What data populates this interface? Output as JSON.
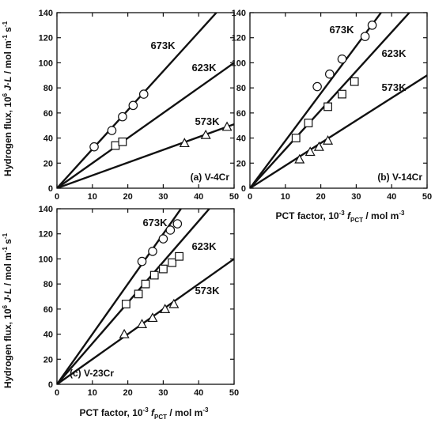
{
  "figure": {
    "ylabel_prefix": "Hydrogen flux, 10",
    "ylabel_exp": "6",
    "ylabel_mid": " J",
    "ylabel_dot": "·",
    "ylabel_L": "L",
    "ylabel_unit": " / mol m",
    "ylabel_unit_exp1": "-1",
    "ylabel_unit_s": " s",
    "ylabel_unit_exp2": "-1",
    "xlabel_prefix": "PCT factor, 10",
    "xlabel_exp": "-3",
    "xlabel_f": " f",
    "xlabel_sub": "PCT",
    "xlabel_unit": " / mol m",
    "xlabel_unit_exp": "-3"
  },
  "chart_data": [
    {
      "type": "scatter",
      "panel_label": "(a) V-4Cr",
      "xlim": [
        0,
        50
      ],
      "ylim": [
        0,
        140
      ],
      "xticks": [
        0,
        10,
        20,
        30,
        40,
        50
      ],
      "yticks": [
        0,
        20,
        40,
        60,
        80,
        100,
        120,
        140
      ],
      "xlabel": "",
      "ylabel": "Hydrogen flux, 10^6 J·L / mol m^-1 s^-1",
      "series": [
        {
          "name": "673K",
          "marker": "circle",
          "points": [
            [
              10.5,
              33
            ],
            [
              15.5,
              46
            ],
            [
              18.5,
              57
            ],
            [
              21.5,
              66
            ],
            [
              24.5,
              75
            ]
          ],
          "fit": [
            [
              0,
              0
            ],
            [
              45,
              140
            ]
          ]
        },
        {
          "name": "623K",
          "marker": "square",
          "points": [
            [
              16.5,
              34
            ],
            [
              18.5,
              37
            ]
          ],
          "fit": [
            [
              0,
              0
            ],
            [
              50,
              100
            ]
          ]
        },
        {
          "name": "573K",
          "marker": "triangle",
          "points": [
            [
              36,
              36
            ],
            [
              42,
              42.5
            ],
            [
              48,
              49
            ]
          ],
          "fit": [
            [
              0,
              0
            ],
            [
              50,
              51
            ]
          ]
        }
      ]
    },
    {
      "type": "scatter",
      "panel_label": "(b) V-14Cr",
      "xlim": [
        0,
        50
      ],
      "ylim": [
        0,
        140
      ],
      "xticks": [
        0,
        10,
        20,
        30,
        40,
        50
      ],
      "yticks": [
        0,
        20,
        40,
        60,
        80,
        100,
        120,
        140
      ],
      "xlabel": "PCT factor, 10^-3 f_PCT / mol m^-3",
      "ylabel": "",
      "series": [
        {
          "name": "673K",
          "marker": "circle",
          "points": [
            [
              19,
              81
            ],
            [
              22.5,
              91
            ],
            [
              26,
              103
            ],
            [
              32.5,
              121
            ],
            [
              34.5,
              130
            ]
          ],
          "fit": [
            [
              0,
              0
            ],
            [
              37,
              140
            ]
          ]
        },
        {
          "name": "623K",
          "marker": "square",
          "points": [
            [
              13,
              40
            ],
            [
              16.5,
              52
            ],
            [
              22,
              65
            ],
            [
              26,
              75
            ],
            [
              29.5,
              85
            ]
          ],
          "fit": [
            [
              0,
              0
            ],
            [
              45,
              140
            ]
          ]
        },
        {
          "name": "573K",
          "marker": "triangle",
          "points": [
            [
              14,
              23
            ],
            [
              17,
              29
            ],
            [
              19.5,
              33
            ],
            [
              22,
              38
            ]
          ],
          "fit": [
            [
              0,
              0
            ],
            [
              50,
              90
            ]
          ]
        }
      ]
    },
    {
      "type": "scatter",
      "panel_label": "(c) V-23Cr",
      "xlim": [
        0,
        50
      ],
      "ylim": [
        0,
        140
      ],
      "xticks": [
        0,
        10,
        20,
        30,
        40,
        50
      ],
      "yticks": [
        0,
        20,
        40,
        60,
        80,
        100,
        120,
        140
      ],
      "xlabel": "PCT factor, 10^-3 f_PCT / mol m^-3",
      "ylabel": "Hydrogen flux, 10^6 J·L / mol m^-1 s^-1",
      "series": [
        {
          "name": "673K",
          "marker": "circle",
          "points": [
            [
              24,
              98
            ],
            [
              27,
              106
            ],
            [
              30,
              116
            ],
            [
              32,
              123
            ],
            [
              34,
              128
            ]
          ],
          "fit": [
            [
              0,
              0
            ],
            [
              35,
              140
            ]
          ]
        },
        {
          "name": "623K",
          "marker": "square",
          "points": [
            [
              19.5,
              64
            ],
            [
              23,
              72
            ],
            [
              25,
              80
            ],
            [
              27.5,
              87
            ],
            [
              30,
              92
            ],
            [
              32.5,
              97
            ],
            [
              34.5,
              102
            ]
          ],
          "fit": [
            [
              0,
              0
            ],
            [
              43,
              140
            ]
          ]
        },
        {
          "name": "573K",
          "marker": "triangle",
          "points": [
            [
              19,
              40
            ],
            [
              24,
              48
            ],
            [
              27,
              53
            ],
            [
              30.5,
              60
            ],
            [
              33,
              64
            ]
          ],
          "fit": [
            [
              0,
              0
            ],
            [
              50,
              100
            ]
          ]
        }
      ]
    }
  ]
}
